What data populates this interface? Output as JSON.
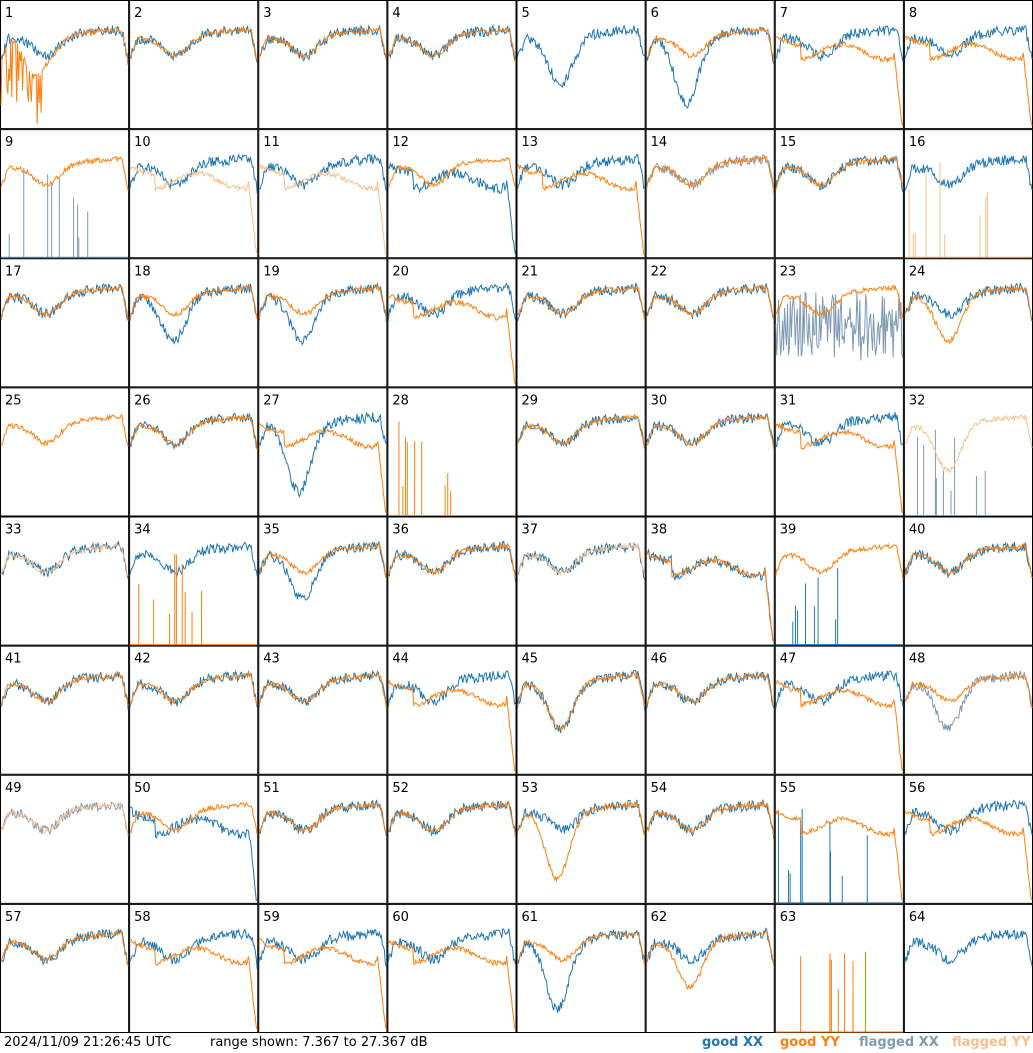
{
  "chart_data": {
    "type": "line",
    "layout": "8x8 small multiples (one panel per tile)",
    "x_axis": "frequency channel (unlabeled)",
    "y_range_db": [
      7.367,
      27.367
    ],
    "grid": false,
    "legend_position": "bottom-right",
    "series_names": [
      "good XX",
      "good YY",
      "flagged XX",
      "flagged YY"
    ],
    "colors": {
      "good_xx": "#1f77b4",
      "good_yy": "#ff7f0e",
      "flagged_xx": "#7f9ab5",
      "flagged_yy": "#fbbf8c"
    },
    "panel_labels": [
      "1",
      "2",
      "3",
      "4",
      "5",
      "6",
      "7",
      "8",
      "9",
      "10",
      "11",
      "12",
      "13",
      "14",
      "15",
      "16",
      "17",
      "18",
      "19",
      "20",
      "21",
      "22",
      "23",
      "24",
      "25",
      "26",
      "27",
      "28",
      "29",
      "30",
      "31",
      "32",
      "33",
      "34",
      "35",
      "36",
      "37",
      "38",
      "39",
      "40",
      "41",
      "42",
      "43",
      "44",
      "45",
      "46",
      "47",
      "48",
      "49",
      "50",
      "51",
      "52",
      "53",
      "54",
      "55",
      "56",
      "57",
      "58",
      "59",
      "60",
      "61",
      "62",
      "63",
      "64"
    ],
    "panel_shapes": {
      "1": {
        "xx": "good",
        "yy": "good",
        "xx_shape": "normal",
        "yy_shape": "spiky_low"
      },
      "2": {
        "xx": "good",
        "yy": "good",
        "xx_shape": "normal",
        "yy_shape": "normal"
      },
      "3": {
        "xx": "good",
        "yy": "good",
        "xx_shape": "normal",
        "yy_shape": "normal"
      },
      "4": {
        "xx": "good",
        "yy": "good",
        "xx_shape": "normal",
        "yy_shape": "normal"
      },
      "5": {
        "xx": "good",
        "yy": "good",
        "xx_shape": "dip",
        "yy_shape": "empty"
      },
      "6": {
        "xx": "good",
        "yy": "good",
        "xx_shape": "deepdip",
        "yy_shape": "normal"
      },
      "7": {
        "xx": "good",
        "yy": "good",
        "xx_shape": "normal",
        "yy_shape": "plateau"
      },
      "8": {
        "xx": "good",
        "yy": "good",
        "xx_shape": "normal",
        "yy_shape": "plateau"
      },
      "9": {
        "xx": "flagged",
        "yy": "good",
        "xx_shape": "sparse",
        "yy_shape": "normal"
      },
      "10": {
        "xx": "good",
        "yy": "flagged",
        "xx_shape": "normal",
        "yy_shape": "plateau"
      },
      "11": {
        "xx": "good",
        "yy": "flagged",
        "xx_shape": "normal",
        "yy_shape": "plateau"
      },
      "12": {
        "xx": "good",
        "yy": "good",
        "xx_shape": "plateau",
        "yy_shape": "normal"
      },
      "13": {
        "xx": "good",
        "yy": "good",
        "xx_shape": "normal",
        "yy_shape": "plateau"
      },
      "14": {
        "xx": "flagged",
        "yy": "good",
        "xx_shape": "normal",
        "yy_shape": "normal"
      },
      "15": {
        "xx": "good",
        "yy": "good",
        "xx_shape": "normal",
        "yy_shape": "normal"
      },
      "16": {
        "xx": "good",
        "yy": "flagged",
        "xx_shape": "normal",
        "yy_shape": "sparse"
      },
      "17": {
        "xx": "good",
        "yy": "good",
        "xx_shape": "normal",
        "yy_shape": "normal"
      },
      "18": {
        "xx": "good",
        "yy": "good",
        "xx_shape": "dip",
        "yy_shape": "normal"
      },
      "19": {
        "xx": "good",
        "yy": "good",
        "xx_shape": "dip",
        "yy_shape": "normal"
      },
      "20": {
        "xx": "good",
        "yy": "good",
        "xx_shape": "normal",
        "yy_shape": "plateau"
      },
      "21": {
        "xx": "good",
        "yy": "good",
        "xx_shape": "normal",
        "yy_shape": "normal"
      },
      "22": {
        "xx": "good",
        "yy": "good",
        "xx_shape": "normal",
        "yy_shape": "normal"
      },
      "23": {
        "xx": "flagged",
        "yy": "good",
        "xx_shape": "noisy",
        "yy_shape": "normal"
      },
      "24": {
        "xx": "good",
        "yy": "good",
        "xx_shape": "normal",
        "yy_shape": "dip"
      },
      "25": {
        "xx": "flagged",
        "yy": "good",
        "xx_shape": "empty",
        "yy_shape": "normal"
      },
      "26": {
        "xx": "good",
        "yy": "good",
        "xx_shape": "normal",
        "yy_shape": "normal"
      },
      "27": {
        "xx": "good",
        "yy": "good",
        "xx_shape": "deepdip",
        "yy_shape": "plateau"
      },
      "28": {
        "xx": "good",
        "yy": "good",
        "xx_shape": "empty",
        "yy_shape": "sparse"
      },
      "29": {
        "xx": "good",
        "yy": "good",
        "xx_shape": "normal",
        "yy_shape": "normal"
      },
      "30": {
        "xx": "good",
        "yy": "good",
        "xx_shape": "normal",
        "yy_shape": "normal"
      },
      "31": {
        "xx": "good",
        "yy": "good",
        "xx_shape": "normal",
        "yy_shape": "plateau"
      },
      "32": {
        "xx": "flagged",
        "yy": "flagged",
        "xx_shape": "sparse",
        "yy_shape": "dip"
      },
      "33": {
        "xx": "good",
        "yy": "flagged",
        "xx_shape": "normal",
        "yy_shape": "normal"
      },
      "34": {
        "xx": "good",
        "yy": "good",
        "xx_shape": "normal",
        "yy_shape": "sparse"
      },
      "35": {
        "xx": "good",
        "yy": "good",
        "xx_shape": "dip",
        "yy_shape": "normal"
      },
      "36": {
        "xx": "good",
        "yy": "good",
        "xx_shape": "normal",
        "yy_shape": "normal"
      },
      "37": {
        "xx": "good",
        "yy": "flagged",
        "xx_shape": "normal",
        "yy_shape": "normal"
      },
      "38": {
        "xx": "good",
        "yy": "good",
        "xx_shape": "plateau",
        "yy_shape": "plateau"
      },
      "39": {
        "xx": "good",
        "yy": "good",
        "xx_shape": "sparse",
        "yy_shape": "normal"
      },
      "40": {
        "xx": "good",
        "yy": "good",
        "xx_shape": "normal",
        "yy_shape": "normal"
      },
      "41": {
        "xx": "good",
        "yy": "good",
        "xx_shape": "normal",
        "yy_shape": "normal"
      },
      "42": {
        "xx": "good",
        "yy": "good",
        "xx_shape": "normal",
        "yy_shape": "normal"
      },
      "43": {
        "xx": "good",
        "yy": "good",
        "xx_shape": "normal",
        "yy_shape": "normal"
      },
      "44": {
        "xx": "good",
        "yy": "good",
        "xx_shape": "normal",
        "yy_shape": "plateau"
      },
      "45": {
        "xx": "good",
        "yy": "good",
        "xx_shape": "dip",
        "yy_shape": "dip"
      },
      "46": {
        "xx": "good",
        "yy": "good",
        "xx_shape": "normal",
        "yy_shape": "normal"
      },
      "47": {
        "xx": "good",
        "yy": "good",
        "xx_shape": "normal",
        "yy_shape": "plateau"
      },
      "48": {
        "xx": "flagged",
        "yy": "good",
        "xx_shape": "dip",
        "yy_shape": "normal"
      },
      "49": {
        "xx": "flagged",
        "yy": "flagged",
        "xx_shape": "normal",
        "yy_shape": "normal"
      },
      "50": {
        "xx": "good",
        "yy": "good",
        "xx_shape": "plateau",
        "yy_shape": "normal"
      },
      "51": {
        "xx": "good",
        "yy": "good",
        "xx_shape": "normal",
        "yy_shape": "normal"
      },
      "52": {
        "xx": "good",
        "yy": "good",
        "xx_shape": "normal",
        "yy_shape": "normal"
      },
      "53": {
        "xx": "good",
        "yy": "good",
        "xx_shape": "normal",
        "yy_shape": "deepdip"
      },
      "54": {
        "xx": "good",
        "yy": "good",
        "xx_shape": "normal",
        "yy_shape": "normal"
      },
      "55": {
        "xx": "good",
        "yy": "good",
        "xx_shape": "sparse",
        "yy_shape": "plateau"
      },
      "56": {
        "xx": "good",
        "yy": "good",
        "xx_shape": "normal",
        "yy_shape": "plateau"
      },
      "57": {
        "xx": "good",
        "yy": "good",
        "xx_shape": "normal",
        "yy_shape": "normal"
      },
      "58": {
        "xx": "good",
        "yy": "good",
        "xx_shape": "normal",
        "yy_shape": "plateau"
      },
      "59": {
        "xx": "good",
        "yy": "good",
        "xx_shape": "normal",
        "yy_shape": "plateau"
      },
      "60": {
        "xx": "good",
        "yy": "good",
        "xx_shape": "normal",
        "yy_shape": "plateau"
      },
      "61": {
        "xx": "good",
        "yy": "good",
        "xx_shape": "deepdip",
        "yy_shape": "normal"
      },
      "62": {
        "xx": "good",
        "yy": "good",
        "xx_shape": "normal",
        "yy_shape": "dip"
      },
      "63": {
        "xx": "good",
        "yy": "good",
        "xx_shape": "empty",
        "yy_shape": "sparse"
      },
      "64": {
        "xx": "good",
        "yy": "good",
        "xx_shape": "normal",
        "yy_shape": "empty"
      }
    }
  },
  "footer": {
    "timestamp": "2024/11/09 21:26:45 UTC",
    "range": "range shown: 7.367 to 27.367 dB",
    "legend": {
      "good_xx": "good XX",
      "good_yy": "good YY",
      "flagged_xx": "flagged XX",
      "flagged_yy": "flagged YY"
    }
  }
}
